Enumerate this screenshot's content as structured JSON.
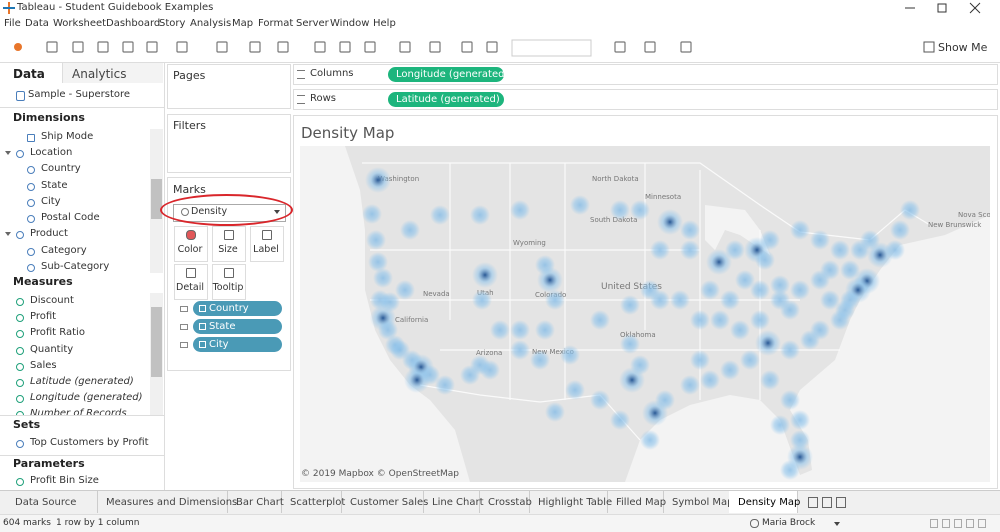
{
  "window": {
    "title": "Tableau - Student Guidebook Examples"
  },
  "menu": [
    "File",
    "Data",
    "Worksheet",
    "Dashboard",
    "Story",
    "Analysis",
    "Map",
    "Format",
    "Server",
    "Window",
    "Help"
  ],
  "toolbar": {
    "show_me": "Show Me"
  },
  "data_pane": {
    "tabs": [
      "Data",
      "Analytics"
    ],
    "source": "Sample - Superstore",
    "dimensions": {
      "header": "Dimensions",
      "items": [
        "Ship Mode",
        "Location",
        "Country",
        "State",
        "City",
        "Postal Code",
        "Product",
        "Category",
        "Sub-Category"
      ]
    },
    "measures": {
      "header": "Measures",
      "items": [
        "Discount",
        "Profit",
        "Profit Ratio",
        "Quantity",
        "Sales",
        "Latitude (generated)",
        "Longitude (generated)",
        "Number of Records"
      ]
    },
    "sets": {
      "header": "Sets",
      "items": [
        "Top Customers by Profit"
      ]
    },
    "parameters": {
      "header": "Parameters",
      "items": [
        "Profit Bin Size"
      ]
    }
  },
  "cards": {
    "pages": "Pages",
    "filters": "Filters",
    "marks": {
      "header": "Marks",
      "mark_type": "Density",
      "buttons": [
        "Color",
        "Size",
        "Label",
        "Detail",
        "Tooltip"
      ],
      "pills": [
        "Country",
        "State",
        "City"
      ]
    }
  },
  "shelves": {
    "columns": {
      "label": "Columns",
      "pill": "Longitude (generated)"
    },
    "rows": {
      "label": "Rows",
      "pill": "Latitude (generated)"
    }
  },
  "sheet": {
    "title": "Density Map",
    "attribution": "© 2019 Mapbox © OpenStreetMap",
    "map_labels": [
      "Washington",
      "North Dakota",
      "Minnesota",
      "South Dakota",
      "Wyoming",
      "Nevada",
      "Utah",
      "Colorado",
      "United States",
      "California",
      "Arizona",
      "New Mexico",
      "Oklahoma",
      "New Brunswick",
      "Nova Scotia"
    ]
  },
  "tabs": [
    "Data Source",
    "Measures and Dimensions",
    "Bar Chart",
    "Scatterplot",
    "Customer Sales",
    "Line Chart",
    "Crosstab",
    "Highlight Table",
    "Filled Map",
    "Symbol Map",
    "Density Map"
  ],
  "status": {
    "marks": "604 marks",
    "layout": "1 row by 1 column",
    "user": "Maria Brock"
  }
}
